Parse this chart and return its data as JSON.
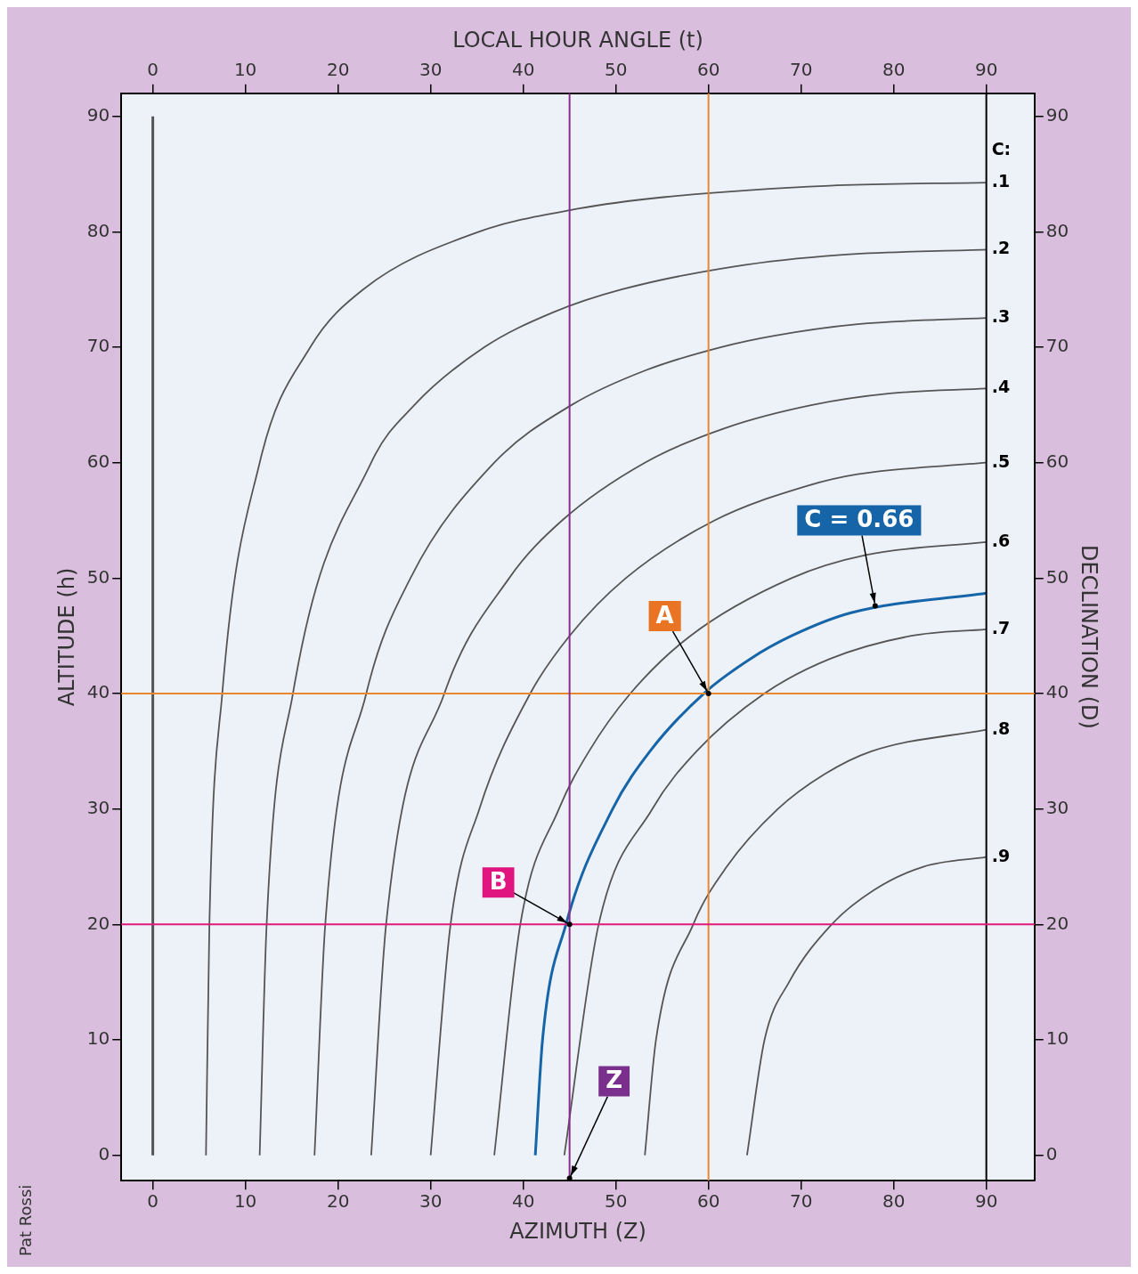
{
  "chart_data": {
    "type": "line",
    "xlabel": "AZIMUTH (Z)",
    "x2label": "LOCAL HOUR ANGLE (t)",
    "ylabel": "ALTITUDE (h)",
    "y2label": "DECLINATION (D)",
    "legend_title": "C:",
    "xlim": [
      -3.4,
      95.2
    ],
    "xticks": [
      0,
      10,
      20,
      30,
      40,
      50,
      60,
      70,
      80,
      90
    ],
    "x2lim": [
      -3.4,
      95.2
    ],
    "x2ticks": [
      0,
      10,
      20,
      30,
      40,
      50,
      60,
      70,
      80,
      90
    ],
    "ylim": [
      -2.2,
      92
    ],
    "yticks": [
      0,
      10,
      20,
      30,
      40,
      50,
      60,
      70,
      80,
      90
    ],
    "y2lim": [
      -2.2,
      92
    ],
    "y2ticks": [
      0,
      10,
      20,
      30,
      40,
      50,
      60,
      70,
      80,
      90
    ],
    "grid": false,
    "marker": "none",
    "line_style": "solid",
    "series": [
      {
        "color": "#555555",
        "x": [
          0,
          0
        ],
        "values": [
          0,
          90
        ]
      },
      {
        "name": ".1",
        "color": "#555555",
        "x": [
          5.74,
          6.11,
          7.5,
          11.54,
          17,
          22.7,
          35.2,
          45.9,
          55.1,
          73.1,
          90
        ],
        "values": [
          0,
          20,
          40,
          60,
          70,
          75,
          80,
          82,
          83,
          84,
          84.26
        ]
      },
      {
        "name": ".2",
        "color": "#555555",
        "x": [
          11.54,
          12.29,
          15.13,
          23.58,
          28.25,
          35.79,
          43.16,
          50.6,
          62.8,
          74.2,
          90
        ],
        "values": [
          0,
          20,
          40,
          60,
          65,
          70,
          73,
          75,
          77,
          78,
          78.46
        ]
      },
      {
        "name": ".3",
        "color": "#555555",
        "x": [
          17.46,
          18.62,
          23.05,
          27.82,
          36.87,
          45.22,
          53.2,
          61.3,
          67.1,
          76.1,
          90
        ],
        "values": [
          0,
          20,
          40,
          50,
          60,
          65,
          68,
          70,
          71,
          72,
          72.54
        ]
      },
      {
        "name": ".4",
        "color": "#555555",
        "x": [
          23.58,
          25.19,
          31.48,
          38.48,
          44.2,
          53.13,
          61.8,
          71.2,
          79.6,
          90
        ],
        "values": [
          0,
          20,
          40,
          50,
          55,
          60,
          63,
          65,
          66,
          66.42
        ]
      },
      {
        "name": ".5",
        "color": "#555555",
        "x": [
          30,
          32.15,
          35.26,
          40.75,
          45,
          51.07,
          60.66,
          70.7,
          76.1,
          90
        ],
        "values": [
          0,
          20,
          30,
          40,
          45,
          50,
          55,
          58,
          59,
          60
        ]
      },
      {
        "name": ".6",
        "color": "#555555",
        "x": [
          36.87,
          39.68,
          43.85,
          47.1,
          51.56,
          58.05,
          68.97,
          77,
          90
        ],
        "values": [
          0,
          20,
          30,
          35,
          40,
          45,
          50,
          52,
          53.13
        ]
      },
      {
        "color": "#1565a8",
        "x": [
          41.3,
          42.08,
          44.61,
          49.65,
          53.68,
          59.49,
          64.5,
          68.97,
          75.4,
          90
        ],
        "values": [
          0,
          10,
          20,
          30,
          35,
          40,
          43,
          45,
          47,
          48.7
        ]
      },
      {
        "name": ".7",
        "color": "#555555",
        "x": [
          44.43,
          48.14,
          53.93,
          58.71,
          66.03,
          73.1,
          81.9,
          90
        ],
        "values": [
          0,
          20,
          30,
          35,
          40,
          43,
          45,
          45.57
        ]
      },
      {
        "name": ".8",
        "color": "#555555",
        "x": [
          53.13,
          54.33,
          58.35,
          61.97,
          67.49,
          72.5,
          77.6,
          90
        ],
        "values": [
          0,
          10,
          20,
          25,
          30,
          33,
          35,
          36.87
        ]
      },
      {
        "name": ".9",
        "color": "#555555",
        "x": [
          64.16,
          66.05,
          68.7,
          73.3,
          77.9,
          83.2,
          90
        ],
        "values": [
          0,
          10,
          15,
          20,
          23,
          25,
          25.84
        ]
      }
    ],
    "ref_lines": [
      {
        "axis": "x",
        "value": 90,
        "color": "#000000"
      },
      {
        "axis": "x",
        "value": 60,
        "color": "#e8872e"
      },
      {
        "axis": "y",
        "value": 40,
        "color": "#e8872e"
      },
      {
        "axis": "y",
        "value": 20,
        "color": "#e0197d"
      },
      {
        "axis": "x",
        "value": 45,
        "color": "#8a2b8f"
      }
    ],
    "annotations": [
      {
        "text": "A",
        "x": 60,
        "y": 40
      },
      {
        "text": "B",
        "x": 45,
        "y": 20
      },
      {
        "text": "Z",
        "x": 45,
        "y": -2
      },
      {
        "text": "C = 0.66",
        "x": 78,
        "y": 47.6
      },
      "Pat Rossi"
    ]
  }
}
